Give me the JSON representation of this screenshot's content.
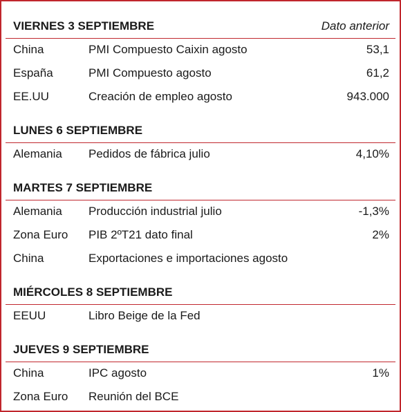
{
  "header_note": "Dato anterior",
  "sections": [
    {
      "title": "VIERNES 3 SEPTIEMBRE",
      "rows": [
        [
          "China",
          "PMI Compuesto Caixin agosto",
          "53,1"
        ],
        [
          "España",
          "PMI Compuesto agosto",
          "61,2"
        ],
        [
          "EE.UU",
          "Creación de empleo agosto",
          "943.000"
        ]
      ]
    },
    {
      "title": "LUNES 6 SEPTIEMBRE",
      "rows": [
        [
          "Alemania",
          "Pedidos de fábrica julio",
          "4,10%"
        ]
      ]
    },
    {
      "title": "MARTES 7 SEPTIEMBRE",
      "rows": [
        [
          "Alemania",
          "Producción industrial julio",
          "-1,3%"
        ],
        [
          "Zona Euro",
          "PIB 2ºT21 dato final",
          "2%"
        ],
        [
          "China",
          "Exportaciones e importaciones agosto"
        ]
      ]
    },
    {
      "title": "MIÉRCOLES 8 SEPTIEMBRE",
      "rows": [
        [
          "EEUU",
          "Libro Beige de la Fed"
        ]
      ]
    },
    {
      "title": "JUEVES 9 SEPTIEMBRE",
      "rows": [
        [
          "China",
          "IPC agosto",
          "1%"
        ],
        [
          "Zona Euro",
          "Reunión del BCE"
        ]
      ]
    }
  ]
}
